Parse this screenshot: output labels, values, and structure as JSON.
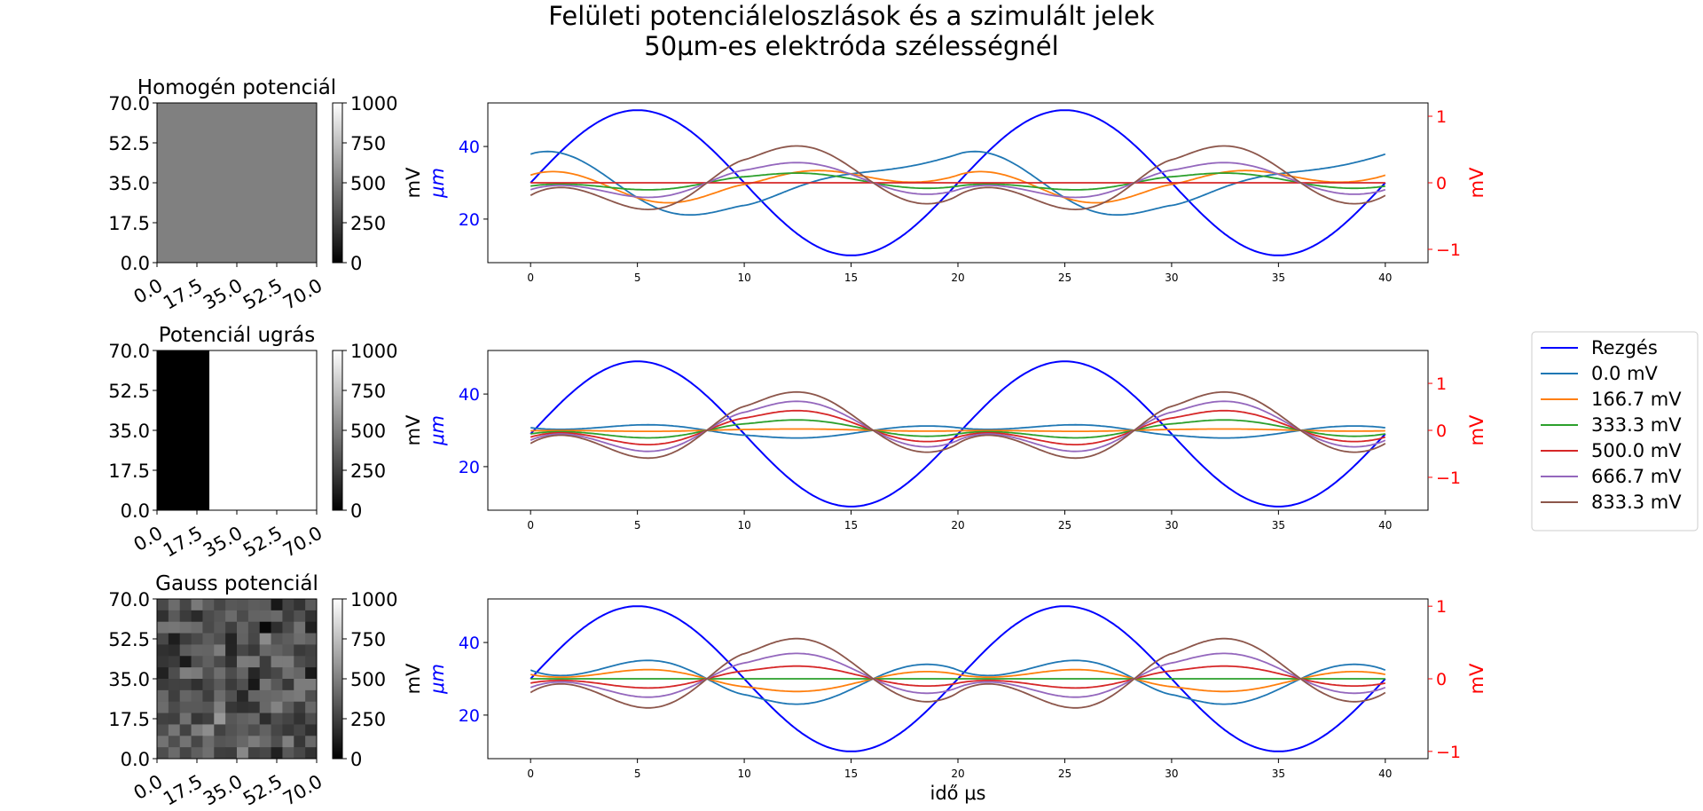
{
  "figure": {
    "title_line1": "Felületi potenciáleloszlások és a szimulált jelek",
    "title_line2": "50µm-es elektróda szélességnél"
  },
  "colors": {
    "vibration": "#0000ff",
    "series": [
      "#1f77b4",
      "#ff7f0e",
      "#2ca02c",
      "#d62728",
      "#9467bd",
      "#8c564b"
    ],
    "right_axis": "#ff0000",
    "left_axis": "#0000ff"
  },
  "legend": {
    "placement": "right",
    "entries": [
      "Rezgés",
      "0.0 mV",
      "166.7 mV",
      "333.3 mV",
      "500.0 mV",
      "666.7 mV",
      "833.3 mV"
    ]
  },
  "chart_data": [
    {
      "type": "heatmap",
      "title": "Homogén potenciál",
      "ticks": [
        "0.0",
        "17.5",
        "35.0",
        "52.5",
        "70.0"
      ],
      "colorbar_label": "mV",
      "colorbar_ticks": [
        "0",
        "250",
        "500",
        "750",
        "1000"
      ],
      "clim": [
        0,
        1000
      ],
      "pattern": "uniform",
      "value": 500
    },
    {
      "type": "heatmap",
      "title": "Potenciál ugrás",
      "ticks": [
        "0.0",
        "17.5",
        "35.0",
        "52.5",
        "70.0"
      ],
      "colorbar_label": "mV",
      "colorbar_ticks": [
        "0",
        "250",
        "500",
        "750",
        "1000"
      ],
      "clim": [
        0,
        1000
      ],
      "pattern": "step",
      "step_at": 23,
      "low": 0,
      "high": 1000
    },
    {
      "type": "heatmap",
      "title": "Gauss potenciál",
      "ticks": [
        "0.0",
        "17.5",
        "35.0",
        "52.5",
        "70.0"
      ],
      "colorbar_label": "mV",
      "colorbar_ticks": [
        "0",
        "250",
        "500",
        "750",
        "1000"
      ],
      "clim": [
        0,
        1000
      ],
      "pattern": "gaussian-noise",
      "grid": 14,
      "mean": 320,
      "std": 110
    },
    {
      "type": "line",
      "x_range": [
        0,
        40
      ],
      "xlim": [
        -2,
        42
      ],
      "x_ticks": [
        "0",
        "5",
        "10",
        "15",
        "20",
        "25",
        "30",
        "35",
        "40"
      ],
      "left_ylabel": "μm",
      "left_ylim": [
        8,
        52
      ],
      "left_ticks": [
        "20",
        "40"
      ],
      "right_ylabel": "mV",
      "right_ylim": [
        -1.2,
        1.2
      ],
      "right_ticks": [
        "−1",
        "0",
        "1"
      ],
      "vibration": {
        "name": "Rezgés",
        "amplitude": 20,
        "offset": 30,
        "period": 20
      },
      "series_amplitudes": [
        0.55,
        0.55,
        0.25,
        0.0,
        0.52,
        0.95
      ],
      "series_offsets": [
        0.6,
        0.25,
        0.0,
        0.0,
        0.0,
        0.0
      ]
    },
    {
      "type": "line",
      "x_range": [
        0,
        40
      ],
      "xlim": [
        -2,
        42
      ],
      "x_ticks": [
        "0",
        "5",
        "10",
        "15",
        "20",
        "25",
        "30",
        "35",
        "40"
      ],
      "left_ylabel": "μm",
      "left_ylim": [
        8,
        52
      ],
      "left_ticks": [
        "20",
        "40"
      ],
      "right_ylabel": "mV",
      "right_ylim": [
        -1.7,
        1.7
      ],
      "right_ticks": [
        "−1",
        "0",
        "1"
      ],
      "vibration": {
        "name": "Rezgés",
        "amplitude": 20,
        "offset": 29,
        "period": 20
      },
      "series_amplitudes": [
        -0.28,
        0.05,
        0.38,
        0.72,
        1.06,
        1.4
      ],
      "series_offsets": [
        0,
        0,
        0,
        0,
        0,
        0
      ]
    },
    {
      "type": "line",
      "x_range": [
        0,
        40
      ],
      "xlim": [
        -2,
        42
      ],
      "x_ticks": [
        "0",
        "5",
        "10",
        "15",
        "20",
        "25",
        "30",
        "35",
        "40"
      ],
      "xlabel": "idő μs",
      "left_ylabel": "μm",
      "left_ylim": [
        8,
        52
      ],
      "left_ticks": [
        "20",
        "40"
      ],
      "right_ylabel": "mV",
      "right_ylim": [
        -1.1,
        1.1
      ],
      "right_ticks": [
        "−1",
        "0",
        "1"
      ],
      "vibration": {
        "name": "Rezgés",
        "amplitude": 20,
        "offset": 30,
        "period": 20
      },
      "series_amplitudes": [
        -0.6,
        -0.3,
        0.0,
        0.3,
        0.6,
        0.95
      ],
      "series_offsets": [
        0,
        0,
        0,
        0,
        0,
        0
      ]
    }
  ]
}
